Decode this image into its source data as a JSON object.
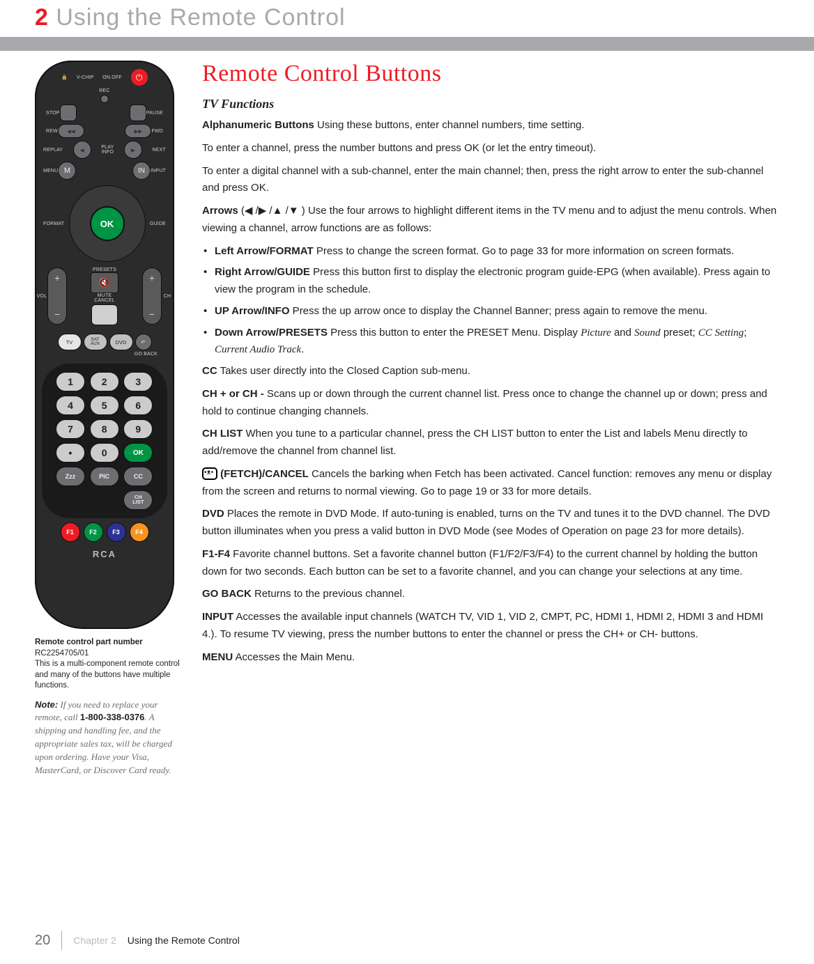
{
  "header": {
    "chapter_num": "2",
    "chapter_title": "Using the Remote Control"
  },
  "colors": {
    "accent_red": "#ed1c24",
    "gray_band": "#a7a9ac",
    "ok_green": "#009444",
    "remote_body": "#2b2b2b"
  },
  "remote": {
    "top_labels": {
      "vchip": "V-CHIP",
      "onoff": "ON.OFF",
      "rec": "REC",
      "stop": "STOP",
      "pause": "PAUSE",
      "rew": "REW",
      "fwd": "FWD",
      "replay": "REPLAY",
      "playinfo": "PLAY\nINFO",
      "next": "NEXT",
      "menu": "MENU",
      "input": "INPUT",
      "format": "FORMAT",
      "guide": "GUIDE"
    },
    "m_btn": "M",
    "in_btn": "IN",
    "ok": "OK",
    "presets": "PRESETS",
    "mute": "MUTE",
    "cancel": "CANCEL",
    "vol": "VOL",
    "ch": "CH",
    "sources": {
      "tv": "TV",
      "sataux": "SAT\nAUX",
      "dvd": "DVD",
      "goback": "GO BACK"
    },
    "numbers": [
      "1",
      "2",
      "3",
      "4",
      "5",
      "6",
      "7",
      "8",
      "9",
      "•",
      "0",
      "OK"
    ],
    "bottom": {
      "zzz": "Zzz",
      "pic": "PIC",
      "cc": "CC",
      "chlist": "CH\nLIST"
    },
    "f": [
      "F1",
      "F2",
      "F3",
      "F4"
    ],
    "f_colors": [
      "#ed1c24",
      "#009444",
      "#2e3192",
      "#f7941e"
    ],
    "brand": "RCA"
  },
  "caption": {
    "line1_bold": "Remote control part number ",
    "line1_pn": "RC2254705/01",
    "line2": "This is a multi-component remote control and many of the buttons have multiple functions."
  },
  "note": {
    "label": "Note:",
    "body_1": " If you need to replace your remote, call ",
    "phone": "1-800-338-0376",
    "body_2": ". A shipping and handling fee, and the appropriate sales tax, will be charged upon ordering. Have your Visa, MasterCard, or Discover Card ready."
  },
  "section": {
    "title": "Remote Control Buttons",
    "subhead": "TV Functions"
  },
  "body": {
    "alpha_lead": "Alphanumeric Buttons",
    "alpha_text": " Using these buttons, enter channel numbers, time setting.",
    "alpha_p2": "To enter a channel, press the number buttons and press OK (or let the entry timeout).",
    "alpha_p3": "To enter a digital channel with a sub-channel, enter the main channel; then, press the right arrow to enter the sub-channel and press OK.",
    "arrows_lead": "Arrows",
    "arrows_sym": " (◀ /▶ /▲ /▼ )  ",
    "arrows_text": "Use the four arrows to highlight different items in the TV menu and to adjust the menu controls. When viewing a channel, arrow functions are as follows:",
    "li1_b": "Left Arrow/FORMAT",
    "li1": "  Press to change the screen format. Go to page 33 for more information on screen formats.",
    "li2_b": "Right Arrow/GUIDE",
    "li2": "  Press this button first to display the electronic program guide-EPG (when available). Press again to view the program in the schedule.",
    "li3_b": "UP Arrow/INFO",
    "li3": "  Press the up arrow once to display the Channel Banner; press again to remove the menu.",
    "li4_b": "Down Arrow/PRESETS",
    "li4a": "  Press this button to enter the PRESET Menu. Display ",
    "li4_pic": "Picture",
    "li4_and": " and ",
    "li4_snd": "Sound",
    "li4b": " preset; ",
    "li4_cc": "CC Setting",
    "li4_sc": "; ",
    "li4_cat": "Current Audio Track",
    "li4_end": ".",
    "cc_b": "CC",
    "cc": " Takes user directly into the Closed Caption sub-menu.",
    "ch_b": "CH + or CH -",
    "ch": " Scans up or down through the current channel list. Press once to change the channel up or down; press and hold to continue changing channels.",
    "chlist_b": "CH LIST",
    "chlist": " When you tune to a particular channel, press the CH LIST button to enter the List and labels Menu directly to add/remove the channel from channel list.",
    "fetch_b": "(FETCH)/CANCEL",
    "fetch": " Cancels the barking when Fetch has been activated. Cancel function: removes any menu or display from the screen and returns to normal viewing. Go to page 19 or 33 for more details.",
    "dvd_b": "DVD",
    "dvd": " Places the remote in DVD Mode. If auto-tuning is enabled, turns on the TV and tunes it to the DVD channel. The DVD button illuminates when you press a valid button in DVD Mode (see Modes of Operation on page 23 for more details).",
    "f14_b": "F1-F4",
    "f14": " Favorite channel buttons. Set a favorite channel button (F1/F2/F3/F4) to the current channel by holding the button down for two seconds. Each button can be set to a favorite channel, and you can change your selections at any time.",
    "gb_b": "GO BACK",
    "gb": " Returns to the previous channel.",
    "in_b": "INPUT",
    "in": " Accesses the available input channels (WATCH TV, VID 1, VID 2, CMPT, PC, HDMI 1, HDMI 2, HDMI 3 and HDMI 4.). To resume TV viewing, press the number buttons to enter the channel or press the CH+ or CH- buttons.",
    "mn_b": "MENU",
    "mn": " Accesses the Main Menu."
  },
  "footer": {
    "page": "20",
    "chapter_label": "Chapter 2",
    "title": "Using the Remote Control"
  }
}
